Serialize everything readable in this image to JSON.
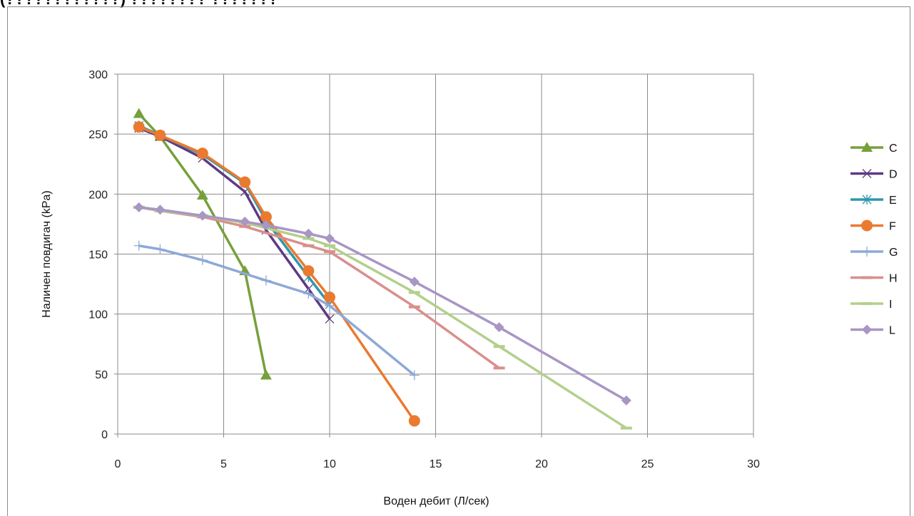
{
  "page_title": "(????????????) ???????? ???????",
  "chart_data": {
    "type": "line",
    "title": "",
    "xlabel": "Воден дебит (Л/сек)",
    "ylabel": "Наличен повдигач (kPa)",
    "xlim": [
      0,
      30
    ],
    "ylim": [
      0,
      300
    ],
    "x_ticks": [
      "0",
      "5",
      "10",
      "15",
      "20",
      "25",
      "30"
    ],
    "y_ticks": [
      "0",
      "50",
      "100",
      "150",
      "200",
      "250",
      "300"
    ],
    "grid": true,
    "legend_position": "right",
    "series": [
      {
        "name": "C",
        "color": "#77a03c",
        "marker": "triangle",
        "points": [
          [
            1,
            267
          ],
          [
            2,
            248
          ],
          [
            4,
            199
          ],
          [
            6,
            136
          ],
          [
            7,
            49
          ]
        ]
      },
      {
        "name": "D",
        "color": "#5e3a82",
        "marker": "x",
        "points": [
          [
            1,
            255
          ],
          [
            2,
            248
          ],
          [
            4,
            230
          ],
          [
            6,
            202
          ],
          [
            7,
            170
          ],
          [
            9,
            121
          ],
          [
            10,
            96
          ]
        ]
      },
      {
        "name": "E",
        "color": "#2f97ae",
        "marker": "star",
        "points": [
          [
            1,
            257
          ],
          [
            2,
            249
          ],
          [
            4,
            233
          ],
          [
            6,
            209
          ],
          [
            7,
            178
          ],
          [
            9,
            131
          ],
          [
            10,
            108
          ]
        ]
      },
      {
        "name": "F",
        "color": "#ea7a30",
        "marker": "circle",
        "points": [
          [
            1,
            256
          ],
          [
            2,
            249
          ],
          [
            4,
            234
          ],
          [
            6,
            210
          ],
          [
            7,
            181
          ],
          [
            9,
            136
          ],
          [
            10,
            114
          ],
          [
            14,
            11
          ]
        ]
      },
      {
        "name": "G",
        "color": "#8ea9d6",
        "marker": "plus",
        "points": [
          [
            1,
            157
          ],
          [
            2,
            154
          ],
          [
            4,
            145
          ],
          [
            7,
            128
          ],
          [
            9,
            117
          ],
          [
            10,
            107
          ],
          [
            14,
            49
          ]
        ]
      },
      {
        "name": "H",
        "color": "#d98f8c",
        "marker": "dash",
        "points": [
          [
            1,
            189
          ],
          [
            2,
            186
          ],
          [
            4,
            181
          ],
          [
            6,
            173
          ],
          [
            9,
            157
          ],
          [
            10,
            152
          ],
          [
            14,
            106
          ],
          [
            18,
            55
          ]
        ]
      },
      {
        "name": "I",
        "color": "#b3d08c",
        "marker": "dash",
        "points": [
          [
            1,
            189
          ],
          [
            2,
            186
          ],
          [
            4,
            182
          ],
          [
            6,
            176
          ],
          [
            9,
            163
          ],
          [
            10,
            157
          ],
          [
            14,
            118
          ],
          [
            18,
            73
          ],
          [
            24,
            5
          ]
        ]
      },
      {
        "name": "L",
        "color": "#a896c4",
        "marker": "diamond",
        "points": [
          [
            1,
            189
          ],
          [
            2,
            187
          ],
          [
            4,
            182
          ],
          [
            6,
            177
          ],
          [
            7,
            174
          ],
          [
            9,
            167
          ],
          [
            10,
            163
          ],
          [
            14,
            127
          ],
          [
            18,
            89
          ],
          [
            24,
            28
          ]
        ]
      }
    ]
  }
}
